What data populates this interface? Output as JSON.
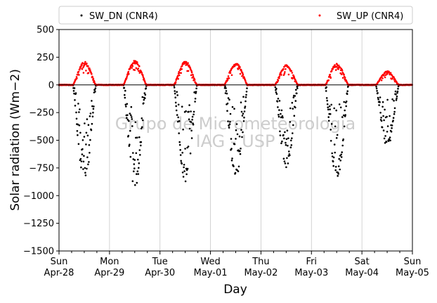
{
  "chart_data": {
    "type": "scatter",
    "title": "",
    "xlabel": "Day",
    "ylabel": "Solar radiation (Wm−2)",
    "ylim": [
      -1500,
      500
    ],
    "yticks": [
      500,
      250,
      0,
      -250,
      -500,
      -750,
      -1000,
      -1250,
      -1500
    ],
    "ytick_labels": [
      "500",
      "250",
      "0",
      "−250",
      "−500",
      "−750",
      "−1000",
      "−1250",
      "−1500"
    ],
    "xlim": [
      "2019-04-28",
      "2019-05-05"
    ],
    "xticks": [
      {
        "day": "Sun",
        "date": "Apr-28"
      },
      {
        "day": "Mon",
        "date": "Apr-29"
      },
      {
        "day": "Tue",
        "date": "Apr-30"
      },
      {
        "day": "Wed",
        "date": "May-01"
      },
      {
        "day": "Thu",
        "date": "May-02"
      },
      {
        "day": "Fri",
        "date": "May-03"
      },
      {
        "day": "Sat",
        "date": "May-04"
      },
      {
        "day": "Sun",
        "date": "May-05"
      }
    ],
    "grid": "vertical",
    "legend_placement": "top (above plot)",
    "zero_line": true,
    "watermark": [
      "Grupo de Micrometeorologia",
      "IAG - USP"
    ],
    "series": [
      {
        "name": "SW_DN (CNR4)",
        "color": "#000000",
        "marker": "dot",
        "daily_minimum": [
          -880,
          -930,
          -890,
          -850,
          -760,
          -860,
          -560
        ]
      },
      {
        "name": "SW_UP (CNR4)",
        "color": "#ff0000",
        "marker": "dot",
        "daily_maximum": [
          210,
          225,
          215,
          200,
          180,
          195,
          125
        ]
      }
    ]
  }
}
